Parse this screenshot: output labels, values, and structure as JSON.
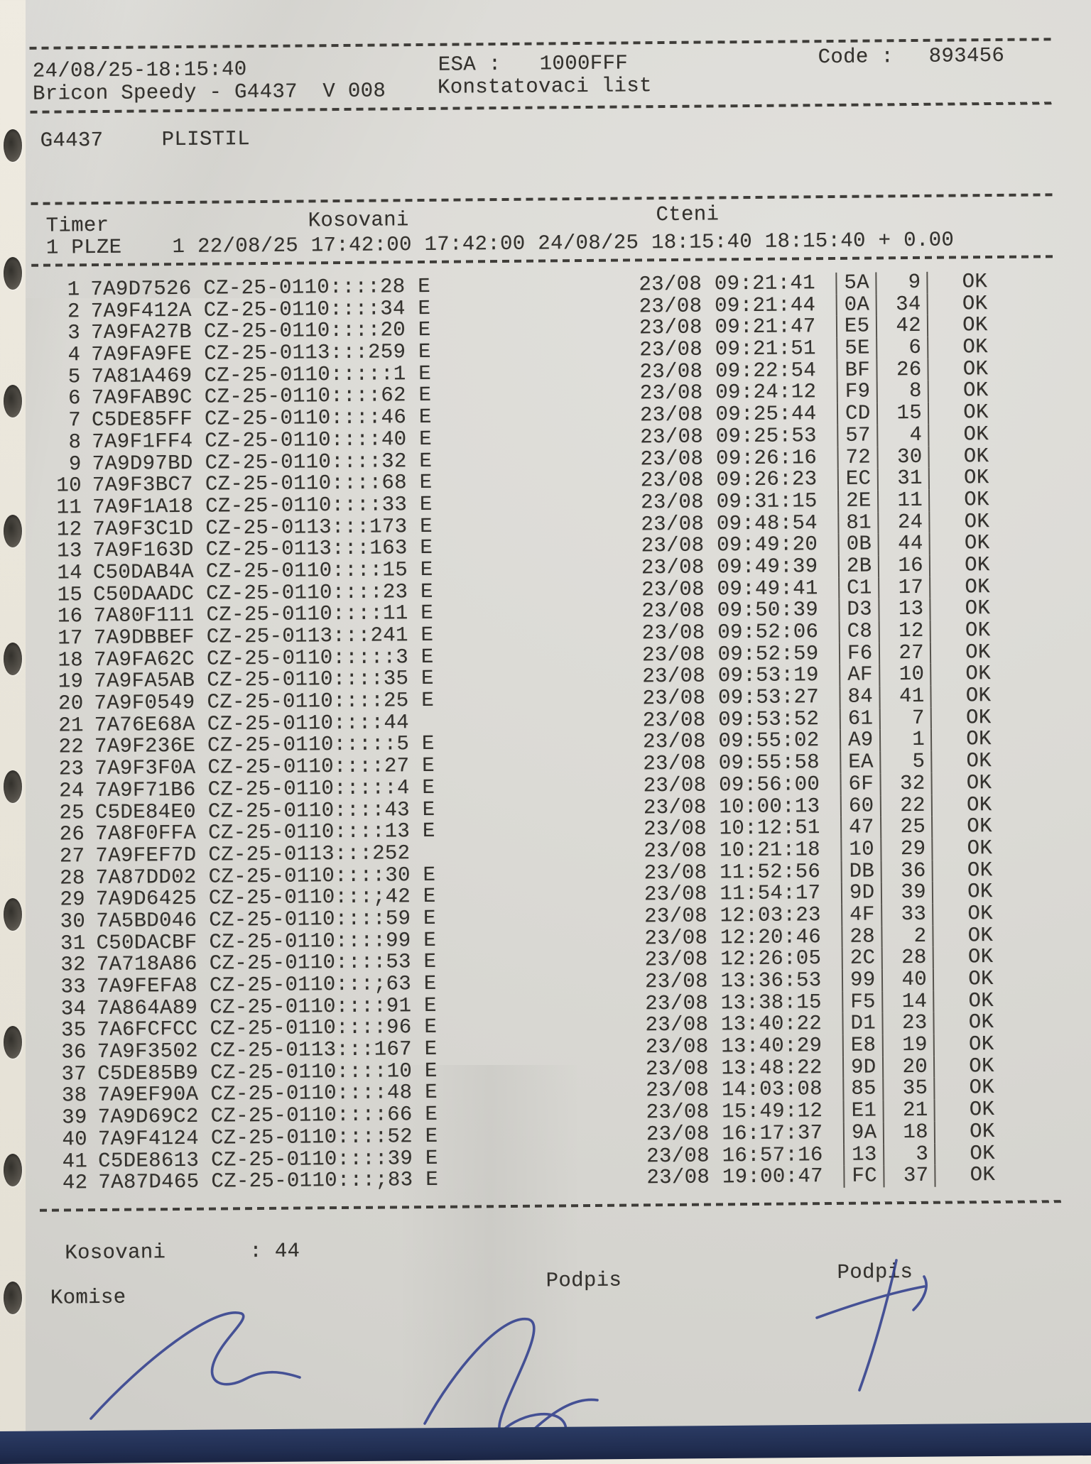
{
  "page": {
    "printed_at": "24/08/25-18:15:40",
    "esa": {
      "label": "ESA :",
      "value": "1000FFF"
    },
    "code": {
      "label": "Code :",
      "value": "893456"
    },
    "device": "Bricon Speedy - G4437  V 008",
    "title": "Konstatovaci list",
    "fancier": {
      "id": "G4437",
      "name": "PLISTIL"
    }
  },
  "timer": {
    "headers": {
      "timer": "Timer",
      "kosovani": "Kosovani",
      "cteni": "Cteni"
    },
    "row": "1 PLZE    1 22/08/25 17:42:00 17:42:00 24/08/25 18:15:40 18:15:40 + 0.00"
  },
  "rows": [
    {
      "n": "1",
      "chip": "7A9D7526",
      "ring": "CZ-25-0110::::28 E",
      "time": "23/08 09:21:41",
      "hex": "5A",
      "seq": "9",
      "st": "OK"
    },
    {
      "n": "2",
      "chip": "7A9F412A",
      "ring": "CZ-25-0110::::34 E",
      "time": "23/08 09:21:44",
      "hex": "0A",
      "seq": "34",
      "st": "OK"
    },
    {
      "n": "3",
      "chip": "7A9FA27B",
      "ring": "CZ-25-0110::::20 E",
      "time": "23/08 09:21:47",
      "hex": "E5",
      "seq": "42",
      "st": "OK"
    },
    {
      "n": "4",
      "chip": "7A9FA9FE",
      "ring": "CZ-25-0113:::259 E",
      "time": "23/08 09:21:51",
      "hex": "5E",
      "seq": "6",
      "st": "OK"
    },
    {
      "n": "5",
      "chip": "7A81A469",
      "ring": "CZ-25-0110:::::1 E",
      "time": "23/08 09:22:54",
      "hex": "BF",
      "seq": "26",
      "st": "OK"
    },
    {
      "n": "6",
      "chip": "7A9FAB9C",
      "ring": "CZ-25-0110::::62 E",
      "time": "23/08 09:24:12",
      "hex": "F9",
      "seq": "8",
      "st": "OK"
    },
    {
      "n": "7",
      "chip": "C5DE85FF",
      "ring": "CZ-25-0110::::46 E",
      "time": "23/08 09:25:44",
      "hex": "CD",
      "seq": "15",
      "st": "OK"
    },
    {
      "n": "8",
      "chip": "7A9F1FF4",
      "ring": "CZ-25-0110::::40 E",
      "time": "23/08 09:25:53",
      "hex": "57",
      "seq": "4",
      "st": "OK"
    },
    {
      "n": "9",
      "chip": "7A9D97BD",
      "ring": "CZ-25-0110::::32 E",
      "time": "23/08 09:26:16",
      "hex": "72",
      "seq": "30",
      "st": "OK"
    },
    {
      "n": "10",
      "chip": "7A9F3BC7",
      "ring": "CZ-25-0110::::68 E",
      "time": "23/08 09:26:23",
      "hex": "EC",
      "seq": "31",
      "st": "OK"
    },
    {
      "n": "11",
      "chip": "7A9F1A18",
      "ring": "CZ-25-0110::::33 E",
      "time": "23/08 09:31:15",
      "hex": "2E",
      "seq": "11",
      "st": "OK"
    },
    {
      "n": "12",
      "chip": "7A9F3C1D",
      "ring": "CZ-25-0113:::173 E",
      "time": "23/08 09:48:54",
      "hex": "81",
      "seq": "24",
      "st": "OK"
    },
    {
      "n": "13",
      "chip": "7A9F163D",
      "ring": "CZ-25-0113:::163 E",
      "time": "23/08 09:49:20",
      "hex": "0B",
      "seq": "44",
      "st": "OK"
    },
    {
      "n": "14",
      "chip": "C50DAB4A",
      "ring": "CZ-25-0110::::15 E",
      "time": "23/08 09:49:39",
      "hex": "2B",
      "seq": "16",
      "st": "OK"
    },
    {
      "n": "15",
      "chip": "C50DAADC",
      "ring": "CZ-25-0110::::23 E",
      "time": "23/08 09:49:41",
      "hex": "C1",
      "seq": "17",
      "st": "OK"
    },
    {
      "n": "16",
      "chip": "7A80F111",
      "ring": "CZ-25-0110::::11 E",
      "time": "23/08 09:50:39",
      "hex": "D3",
      "seq": "13",
      "st": "OK"
    },
    {
      "n": "17",
      "chip": "7A9DBBEF",
      "ring": "CZ-25-0113:::241 E",
      "time": "23/08 09:52:06",
      "hex": "C8",
      "seq": "12",
      "st": "OK"
    },
    {
      "n": "18",
      "chip": "7A9FA62C",
      "ring": "CZ-25-0110:::::3 E",
      "time": "23/08 09:52:59",
      "hex": "F6",
      "seq": "27",
      "st": "OK"
    },
    {
      "n": "19",
      "chip": "7A9FA5AB",
      "ring": "CZ-25-0110::::35 E",
      "time": "23/08 09:53:19",
      "hex": "AF",
      "seq": "10",
      "st": "OK"
    },
    {
      "n": "20",
      "chip": "7A9F0549",
      "ring": "CZ-25-0110::::25 E",
      "time": "23/08 09:53:27",
      "hex": "84",
      "seq": "41",
      "st": "OK"
    },
    {
      "n": "21",
      "chip": "7A76E68A",
      "ring": "CZ-25-0110::::44",
      "time": "23/08 09:53:52",
      "hex": "61",
      "seq": "7",
      "st": "OK"
    },
    {
      "n": "22",
      "chip": "7A9F236E",
      "ring": "CZ-25-0110:::::5 E",
      "time": "23/08 09:55:02",
      "hex": "A9",
      "seq": "1",
      "st": "OK"
    },
    {
      "n": "23",
      "chip": "7A9F3F0A",
      "ring": "CZ-25-0110::::27 E",
      "time": "23/08 09:55:58",
      "hex": "EA",
      "seq": "5",
      "st": "OK"
    },
    {
      "n": "24",
      "chip": "7A9F71B6",
      "ring": "CZ-25-0110:::::4 E",
      "time": "23/08 09:56:00",
      "hex": "6F",
      "seq": "32",
      "st": "OK"
    },
    {
      "n": "25",
      "chip": "C5DE84E0",
      "ring": "CZ-25-0110::::43 E",
      "time": "23/08 10:00:13",
      "hex": "60",
      "seq": "22",
      "st": "OK"
    },
    {
      "n": "26",
      "chip": "7A8F0FFA",
      "ring": "CZ-25-0110::::13 E",
      "time": "23/08 10:12:51",
      "hex": "47",
      "seq": "25",
      "st": "OK"
    },
    {
      "n": "27",
      "chip": "7A9FEF7D",
      "ring": "CZ-25-0113:::252",
      "time": "23/08 10:21:18",
      "hex": "10",
      "seq": "29",
      "st": "OK"
    },
    {
      "n": "28",
      "chip": "7A87DD02",
      "ring": "CZ-25-0110::::30 E",
      "time": "23/08 11:52:56",
      "hex": "DB",
      "seq": "36",
      "st": "OK"
    },
    {
      "n": "29",
      "chip": "7A9D6425",
      "ring": "CZ-25-0110:::;42 E",
      "time": "23/08 11:54:17",
      "hex": "9D",
      "seq": "39",
      "st": "OK"
    },
    {
      "n": "30",
      "chip": "7A5BD046",
      "ring": "CZ-25-0110::::59 E",
      "time": "23/08 12:03:23",
      "hex": "4F",
      "seq": "33",
      "st": "OK"
    },
    {
      "n": "31",
      "chip": "C50DACBF",
      "ring": "CZ-25-0110::::99 E",
      "time": "23/08 12:20:46",
      "hex": "28",
      "seq": "2",
      "st": "OK"
    },
    {
      "n": "32",
      "chip": "7A718A86",
      "ring": "CZ-25-0110::::53 E",
      "time": "23/08 12:26:05",
      "hex": "2C",
      "seq": "28",
      "st": "OK"
    },
    {
      "n": "33",
      "chip": "7A9FEFA8",
      "ring": "CZ-25-0110:::;63 E",
      "time": "23/08 13:36:53",
      "hex": "99",
      "seq": "40",
      "st": "OK"
    },
    {
      "n": "34",
      "chip": "7A864A89",
      "ring": "CZ-25-0110::::91 E",
      "time": "23/08 13:38:15",
      "hex": "F5",
      "seq": "14",
      "st": "OK"
    },
    {
      "n": "35",
      "chip": "7A6FCFCC",
      "ring": "CZ-25-0110::::96 E",
      "time": "23/08 13:40:22",
      "hex": "D1",
      "seq": "23",
      "st": "OK"
    },
    {
      "n": "36",
      "chip": "7A9F3502",
      "ring": "CZ-25-0113:::167 E",
      "time": "23/08 13:40:29",
      "hex": "E8",
      "seq": "19",
      "st": "OK"
    },
    {
      "n": "37",
      "chip": "C5DE85B9",
      "ring": "CZ-25-0110::::10 E",
      "time": "23/08 13:48:22",
      "hex": "9D",
      "seq": "20",
      "st": "OK"
    },
    {
      "n": "38",
      "chip": "7A9EF90A",
      "ring": "CZ-25-0110::::48 E",
      "time": "23/08 14:03:08",
      "hex": "85",
      "seq": "35",
      "st": "OK"
    },
    {
      "n": "39",
      "chip": "7A9D69C2",
      "ring": "CZ-25-0110::::66 E",
      "time": "23/08 15:49:12",
      "hex": "E1",
      "seq": "21",
      "st": "OK"
    },
    {
      "n": "40",
      "chip": "7A9F4124",
      "ring": "CZ-25-0110::::52 E",
      "time": "23/08 16:17:37",
      "hex": "9A",
      "seq": "18",
      "st": "OK"
    },
    {
      "n": "41",
      "chip": "C5DE8613",
      "ring": "CZ-25-0110::::39 E",
      "time": "23/08 16:57:16",
      "hex": "13",
      "seq": "3",
      "st": "OK"
    },
    {
      "n": "42",
      "chip": "7A87D465",
      "ring": "CZ-25-0110:::;83 E",
      "time": "23/08 19:00:47",
      "hex": "FC",
      "seq": "37",
      "st": "OK"
    }
  ],
  "summary": {
    "label": "Kosovani",
    "value": ": 44"
  },
  "signature_labels": {
    "komise": "Komise",
    "podpis1": "Podpis",
    "podpis2": "Podpis"
  },
  "colors": {
    "ink": "#34322e",
    "pen": "#313f8d",
    "paper": "#dbdad5",
    "footer_bar": "#202d50"
  }
}
